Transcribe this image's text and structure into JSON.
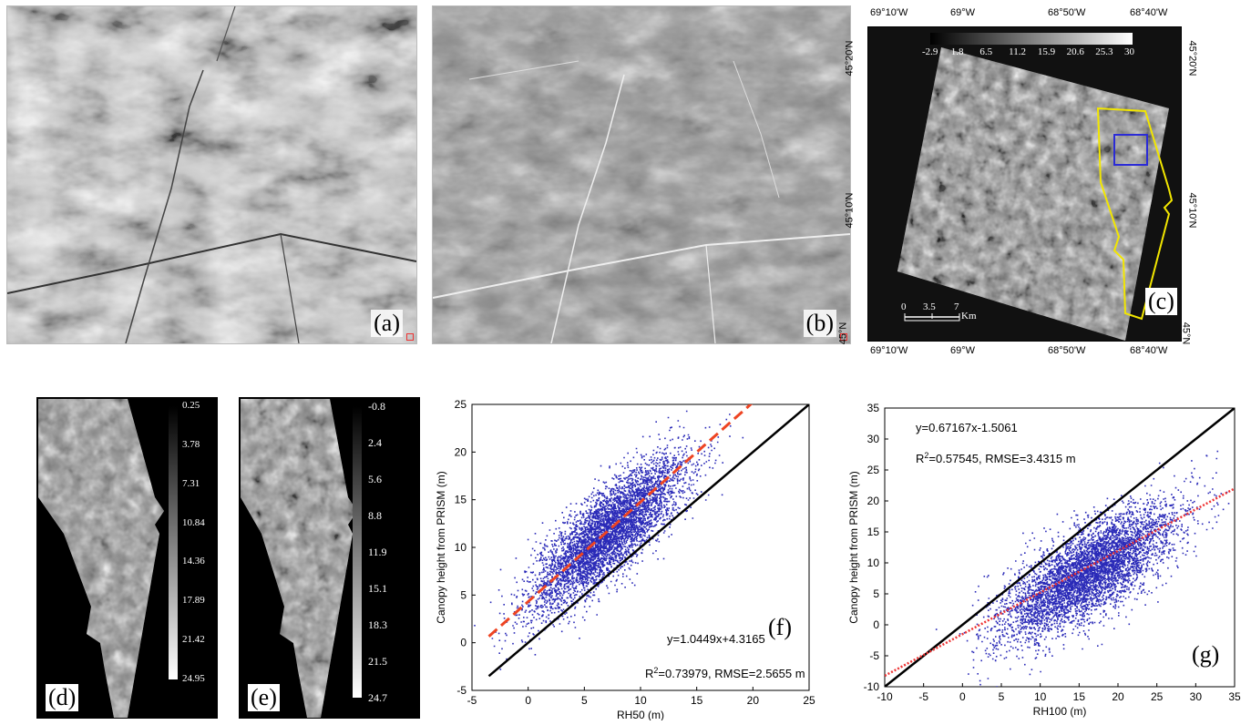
{
  "panels": {
    "a": {
      "label": "(a)"
    },
    "b": {
      "label": "(b)"
    },
    "c": {
      "label": "(c)",
      "colorbar_ticks": [
        "-2.9",
        "1.8",
        "6.5",
        "11.2",
        "15.9",
        "20.6",
        "25.3",
        "30"
      ],
      "top_lon_ticks": [
        "69°10'W",
        "69°W",
        "68°50'W",
        "68°40'W"
      ],
      "bottom_lon_ticks": [
        "69°10'W",
        "69°W",
        "68°50'W",
        "68°40'W"
      ],
      "left_lat_ticks": [
        "45°20'N",
        "45°10'N",
        "45°N"
      ],
      "right_lat_ticks": [
        "45°20'N",
        "45°10'N",
        "45°N"
      ],
      "scale_ticks": [
        "0",
        "3.5",
        "7"
      ],
      "scale_unit": "Km",
      "colors": {
        "study_area": "#f2e600",
        "subset_box": "#2b2bd6",
        "background": "#111111"
      }
    },
    "d": {
      "label": "(d)",
      "colorbar_ticks": [
        "0.25",
        "3.78",
        "7.31",
        "10.84",
        "14.36",
        "17.89",
        "21.42",
        "24.95"
      ]
    },
    "e": {
      "label": "(e)",
      "colorbar_ticks": [
        "-0.8",
        "2.4",
        "5.6",
        "8.8",
        "11.9",
        "15.1",
        "18.3",
        "21.5",
        "24.7"
      ]
    },
    "f": {
      "label": "(f)"
    },
    "g": {
      "label": "(g)"
    }
  },
  "chart_data": [
    {
      "id": "f",
      "type": "scatter",
      "xlabel": "RH50 (m)",
      "ylabel": "Canopy height from PRISM (m)",
      "xlim": [
        -5,
        25
      ],
      "ylim": [
        -5,
        25
      ],
      "xticks": [
        -5,
        0,
        5,
        10,
        15,
        20,
        25
      ],
      "yticks": [
        -5,
        0,
        5,
        10,
        15,
        20,
        25
      ],
      "equation": "y=1.0449x+4.3165",
      "r2_prefix": "R",
      "r2_sup": "2",
      "r2_rest": "=0.73979, RMSE=2.5655 m",
      "fit": {
        "slope": 1.0449,
        "intercept": 4.3165,
        "x_range": [
          -3.5,
          20
        ],
        "style": "dashed"
      },
      "one_to_one": {
        "x_range": [
          -3.5,
          25
        ]
      },
      "cloud": {
        "x_center": 7,
        "y_center": 11.5,
        "slope": 0.95
      },
      "colors": {
        "points": "#2a2ab8",
        "fit": "#ee4422",
        "one_to_one": "#000000"
      }
    },
    {
      "id": "g",
      "type": "scatter",
      "xlabel": "RH100 (m)",
      "ylabel": "Canopy height from PRISM (m)",
      "xlim": [
        -10,
        35
      ],
      "ylim": [
        -10,
        35
      ],
      "xticks": [
        -10,
        -5,
        0,
        5,
        10,
        15,
        20,
        25,
        30,
        35
      ],
      "yticks": [
        -10,
        -5,
        0,
        5,
        10,
        15,
        20,
        25,
        30,
        35
      ],
      "equation": "y=0.67167x-1.5061",
      "r2_prefix": "R",
      "r2_sup": "2",
      "r2_rest": "=0.57545, RMSE=3.4315 m",
      "fit": {
        "slope": 0.67167,
        "intercept": -1.5061,
        "x_range": [
          -10,
          35
        ],
        "style": "dotted"
      },
      "one_to_one": {
        "x_range": [
          -10,
          35
        ]
      },
      "cloud": {
        "x_center": 16,
        "y_center": 8.5,
        "slope": 0.7
      },
      "colors": {
        "points": "#2a2ab8",
        "fit": "#ee3333",
        "one_to_one": "#000000"
      }
    }
  ]
}
